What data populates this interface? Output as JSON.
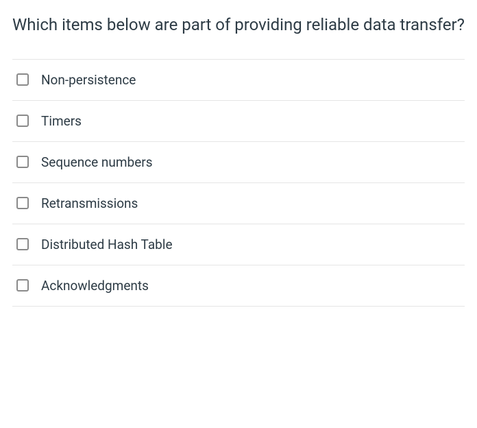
{
  "question": {
    "text": "Which items below are part of providing reliable data transfer?"
  },
  "options": [
    {
      "label": "Non-persistence"
    },
    {
      "label": "Timers"
    },
    {
      "label": "Sequence numbers"
    },
    {
      "label": "Retransmissions"
    },
    {
      "label": "Distributed Hash Table"
    },
    {
      "label": "Acknowledgments"
    }
  ],
  "colors": {
    "text": "#2d3b45",
    "border": "#e5e5e5",
    "checkbox_border": "#8a8a8a",
    "background": "#ffffff"
  }
}
